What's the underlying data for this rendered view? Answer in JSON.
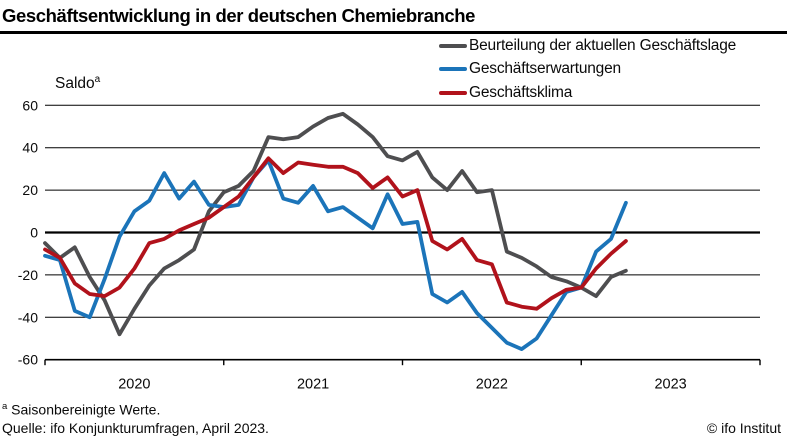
{
  "title": "Geschäftsentwicklung in der deutschen Chemiebranche",
  "saldo": {
    "text": "Saldo",
    "sup": "a"
  },
  "footnote": {
    "sup": "a",
    "text": " Saisonbereinigte Werte."
  },
  "source": "Quelle: ifo Konjunkturumfragen, April 2023.",
  "copyright": "© ifo Institut",
  "colors": {
    "lage": "#4e4e50",
    "erwartungen": "#1b74b9",
    "klima": "#b1121b",
    "axis": "#000000",
    "text": "#0a0a0a"
  },
  "chart_data": {
    "type": "line",
    "x_period": "monthly",
    "x_start": "2020-01",
    "x_end": "2023-04",
    "x_tick_labels": [
      "2020",
      "2021",
      "2022",
      "2023"
    ],
    "ylabel": "Saldo",
    "ylim": [
      -60,
      60
    ],
    "yticks": [
      60,
      40,
      20,
      0,
      -20,
      -40,
      -60
    ],
    "grid": true,
    "legend_position": "top-right",
    "months": [
      "2020-01",
      "2020-02",
      "2020-03",
      "2020-04",
      "2020-05",
      "2020-06",
      "2020-07",
      "2020-08",
      "2020-09",
      "2020-10",
      "2020-11",
      "2020-12",
      "2021-01",
      "2021-02",
      "2021-03",
      "2021-04",
      "2021-05",
      "2021-06",
      "2021-07",
      "2021-08",
      "2021-09",
      "2021-10",
      "2021-11",
      "2021-12",
      "2022-01",
      "2022-02",
      "2022-03",
      "2022-04",
      "2022-05",
      "2022-06",
      "2022-07",
      "2022-08",
      "2022-09",
      "2022-10",
      "2022-11",
      "2022-12",
      "2023-01",
      "2023-02",
      "2023-03",
      "2023-04"
    ],
    "series": [
      {
        "name": "Beurteilung der aktuellen Geschäftslage",
        "color": "#4e4e50",
        "values": [
          -5,
          -12,
          -7,
          -21,
          -32,
          -48,
          -36,
          -25,
          -17,
          -13,
          -8,
          10,
          19,
          22,
          29,
          45,
          44,
          45,
          50,
          54,
          56,
          51,
          45,
          36,
          34,
          38,
          26,
          20,
          29,
          19,
          20,
          -9,
          -12,
          -16,
          -21,
          -23,
          -26,
          -30,
          -21,
          -18
        ]
      },
      {
        "name": "Geschäftserwartungen",
        "color": "#1b74b9",
        "values": [
          -11,
          -13,
          -37,
          -40,
          -22,
          -2,
          10,
          15,
          28,
          16,
          24,
          13,
          12,
          13,
          26,
          34,
          16,
          14,
          22,
          10,
          12,
          7,
          2,
          18,
          4,
          5,
          -29,
          -33,
          -28,
          -38,
          -45,
          -52,
          -55,
          -50,
          -39,
          -28,
          -26,
          -9,
          -3,
          14
        ]
      },
      {
        "name": "Geschäftsklima",
        "color": "#b1121b",
        "values": [
          -8,
          -12,
          -24,
          -29,
          -30,
          -26,
          -17,
          -5,
          -3,
          1,
          4,
          7,
          12,
          17,
          26,
          35,
          28,
          33,
          32,
          31,
          31,
          28,
          21,
          26,
          17,
          20,
          -4,
          -8,
          -3,
          -13,
          -15,
          -33,
          -35,
          -36,
          -31,
          -27,
          -26,
          -17,
          -10,
          -4
        ]
      }
    ]
  }
}
